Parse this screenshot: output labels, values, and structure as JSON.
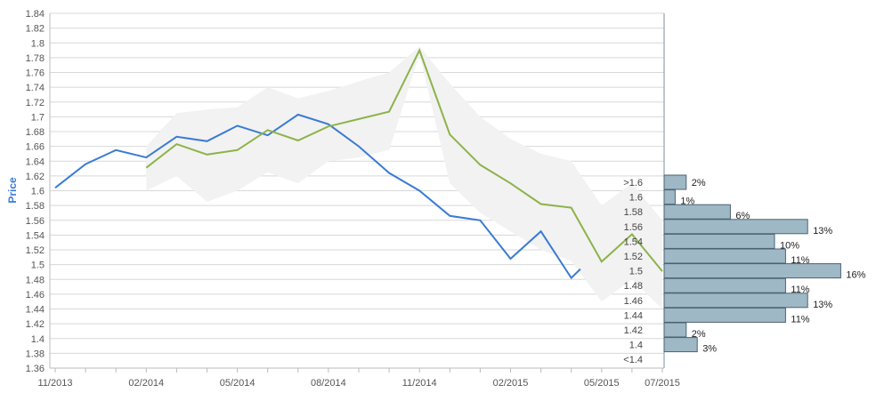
{
  "chart_data": {
    "type": "line",
    "ylabel": "Price",
    "xlabel": "",
    "ylim": [
      1.36,
      1.84
    ],
    "yticks": [
      "1.36",
      "1.38",
      "1.4",
      "1.42",
      "1.44",
      "1.46",
      "1.48",
      "1.5",
      "1.52",
      "1.54",
      "1.56",
      "1.58",
      "1.6",
      "1.62",
      "1.64",
      "1.66",
      "1.68",
      "1.7",
      "1.72",
      "1.74",
      "1.76",
      "1.78",
      "1.8",
      "1.82",
      "1.84"
    ],
    "x_labels": [
      "11/2013",
      "02/2014",
      "05/2014",
      "08/2014",
      "11/2014",
      "02/2015",
      "05/2015",
      "07/2015"
    ],
    "grid": true,
    "colors": {
      "actual": "#3a7bd5",
      "forecast": "#8db34a",
      "band": "#f2f2f2",
      "hist": "#9fb8c6"
    },
    "series": [
      {
        "key": "actual",
        "points": [
          [
            "2013-11",
            1.604
          ],
          [
            "2013-12",
            1.636
          ],
          [
            "2014-01",
            1.655
          ],
          [
            "2014-02",
            1.645
          ],
          [
            "2014-03",
            1.673
          ],
          [
            "2014-04",
            1.667
          ],
          [
            "2014-05",
            1.688
          ],
          [
            "2014-06",
            1.675
          ],
          [
            "2014-07",
            1.703
          ],
          [
            "2014-08",
            1.69
          ],
          [
            "2014-09",
            1.66
          ],
          [
            "2014-10",
            1.624
          ],
          [
            "2014-11",
            1.6
          ],
          [
            "2014-12",
            1.566
          ],
          [
            "2015-01",
            1.56
          ],
          [
            "2015-02",
            1.508
          ],
          [
            "2015-03",
            1.545
          ],
          [
            "2015-04",
            1.482
          ],
          [
            "2015-04-10",
            1.494
          ]
        ]
      },
      {
        "key": "forecast",
        "points": [
          [
            "2014-02",
            1.631
          ],
          [
            "2014-03",
            1.663
          ],
          [
            "2014-04",
            1.649
          ],
          [
            "2014-05",
            1.655
          ],
          [
            "2014-06",
            1.682
          ],
          [
            "2014-07",
            1.668
          ],
          [
            "2014-08",
            1.687
          ],
          [
            "2014-09",
            1.697
          ],
          [
            "2014-10",
            1.707
          ],
          [
            "2014-11",
            1.79
          ],
          [
            "2014-12",
            1.676
          ],
          [
            "2015-01",
            1.635
          ],
          [
            "2015-02",
            1.61
          ],
          [
            "2015-03",
            1.582
          ],
          [
            "2015-04",
            1.577
          ],
          [
            "2015-05",
            1.504
          ],
          [
            "2015-06",
            1.541
          ],
          [
            "2015-07",
            1.491
          ]
        ]
      }
    ],
    "band": {
      "upper": [
        [
          "2014-02",
          1.66
        ],
        [
          "2014-03",
          1.705
        ],
        [
          "2014-04",
          1.71
        ],
        [
          "2014-05",
          1.713
        ],
        [
          "2014-06",
          1.74
        ],
        [
          "2014-07",
          1.725
        ],
        [
          "2014-08",
          1.735
        ],
        [
          "2014-09",
          1.748
        ],
        [
          "2014-10",
          1.76
        ],
        [
          "2014-11",
          1.795
        ],
        [
          "2014-12",
          1.745
        ],
        [
          "2015-01",
          1.7
        ],
        [
          "2015-02",
          1.67
        ],
        [
          "2015-03",
          1.65
        ],
        [
          "2015-04",
          1.64
        ],
        [
          "2015-05",
          1.58
        ],
        [
          "2015-06",
          1.61
        ],
        [
          "2015-07",
          1.56
        ]
      ],
      "lower": [
        [
          "2014-02",
          1.6
        ],
        [
          "2014-03",
          1.62
        ],
        [
          "2014-04",
          1.585
        ],
        [
          "2014-05",
          1.6
        ],
        [
          "2014-06",
          1.625
        ],
        [
          "2014-07",
          1.61
        ],
        [
          "2014-08",
          1.64
        ],
        [
          "2014-09",
          1.645
        ],
        [
          "2014-10",
          1.655
        ],
        [
          "2014-11",
          1.785
        ],
        [
          "2014-12",
          1.61
        ],
        [
          "2015-01",
          1.57
        ],
        [
          "2015-02",
          1.545
        ],
        [
          "2015-03",
          1.52
        ],
        [
          "2015-04",
          1.505
        ],
        [
          "2015-05",
          1.45
        ],
        [
          "2015-06",
          1.48
        ],
        [
          "2015-07",
          1.44
        ]
      ]
    },
    "histogram": [
      {
        "label": ">1.6",
        "pct": 2,
        "text": "2%"
      },
      {
        "label": "1.6",
        "pct": 1,
        "text": "1%"
      },
      {
        "label": "1.58",
        "pct": 6,
        "text": "6%"
      },
      {
        "label": "1.56",
        "pct": 13,
        "text": "13%"
      },
      {
        "label": "1.54",
        "pct": 10,
        "text": "10%"
      },
      {
        "label": "1.52",
        "pct": 11,
        "text": "11%"
      },
      {
        "label": "1.5",
        "pct": 16,
        "text": "16%"
      },
      {
        "label": "1.48",
        "pct": 11,
        "text": "11%"
      },
      {
        "label": "1.46",
        "pct": 13,
        "text": "13%"
      },
      {
        "label": "1.44",
        "pct": 11,
        "text": "11%"
      },
      {
        "label": "1.42",
        "pct": 2,
        "text": "2%"
      },
      {
        "label": "1.4",
        "pct": 3,
        "text": "3%"
      },
      {
        "label": "<1.4",
        "pct": 0,
        "text": ""
      }
    ]
  }
}
